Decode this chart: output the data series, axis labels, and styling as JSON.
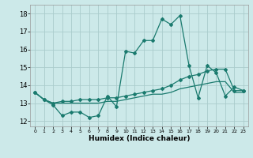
{
  "xlabel": "Humidex (Indice chaleur)",
  "background_color": "#cce9e9",
  "grid_color": "#aacccc",
  "line_color": "#1a7a6e",
  "xlim": [
    -0.5,
    23.5
  ],
  "ylim": [
    11.7,
    18.5
  ],
  "yticks": [
    12,
    13,
    14,
    15,
    16,
    17,
    18
  ],
  "xticks": [
    0,
    1,
    2,
    3,
    4,
    5,
    6,
    7,
    8,
    9,
    10,
    11,
    12,
    13,
    14,
    15,
    16,
    17,
    18,
    19,
    20,
    21,
    22,
    23
  ],
  "series1_x": [
    0,
    1,
    2,
    3,
    4,
    5,
    6,
    7,
    8,
    9,
    10,
    11,
    12,
    13,
    14,
    15,
    16,
    17,
    18,
    19,
    20,
    21,
    22,
    23
  ],
  "series1_y": [
    13.6,
    13.2,
    12.9,
    12.3,
    12.5,
    12.5,
    12.2,
    12.3,
    13.4,
    12.8,
    15.9,
    15.8,
    16.5,
    16.5,
    17.7,
    17.4,
    17.9,
    15.1,
    13.3,
    15.1,
    14.7,
    13.4,
    13.9,
    13.7
  ],
  "series2_x": [
    0,
    1,
    2,
    3,
    4,
    5,
    6,
    7,
    8,
    9,
    10,
    11,
    12,
    13,
    14,
    15,
    16,
    17,
    18,
    19,
    20,
    21,
    22,
    23
  ],
  "series2_y": [
    13.6,
    13.2,
    13.0,
    13.1,
    13.1,
    13.2,
    13.2,
    13.2,
    13.3,
    13.3,
    13.4,
    13.5,
    13.6,
    13.7,
    13.8,
    14.0,
    14.3,
    14.5,
    14.6,
    14.8,
    14.9,
    14.9,
    13.7,
    13.7
  ],
  "series3_x": [
    0,
    1,
    2,
    3,
    4,
    5,
    6,
    7,
    8,
    9,
    10,
    11,
    12,
    13,
    14,
    15,
    16,
    17,
    18,
    19,
    20,
    21,
    22,
    23
  ],
  "series3_y": [
    13.6,
    13.2,
    13.0,
    13.0,
    13.0,
    13.0,
    13.0,
    13.0,
    13.1,
    13.1,
    13.2,
    13.3,
    13.4,
    13.5,
    13.5,
    13.6,
    13.8,
    13.9,
    14.0,
    14.1,
    14.2,
    14.2,
    13.6,
    13.6
  ]
}
